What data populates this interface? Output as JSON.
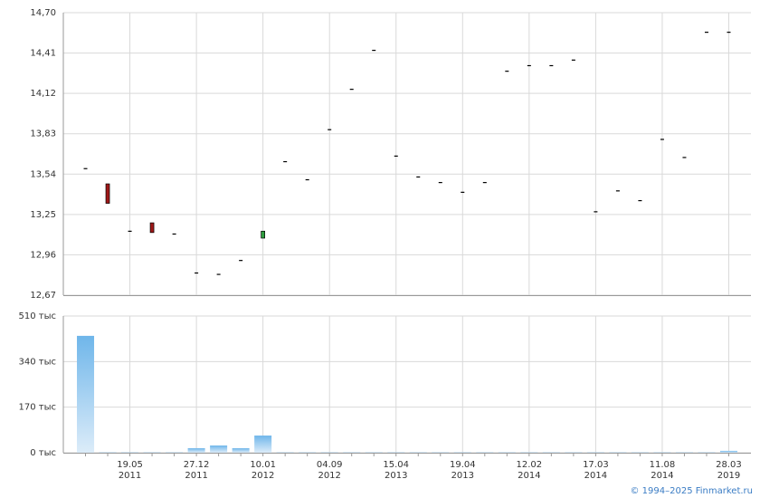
{
  "chart_data": [
    {
      "type": "candlestick",
      "open": [
        13.58,
        13.47,
        13.13,
        13.19,
        13.11,
        12.83,
        12.82,
        12.92,
        13.08,
        13.63,
        13.5,
        13.86,
        14.15,
        14.43,
        13.67,
        13.52,
        13.48,
        13.41,
        13.48,
        14.28,
        14.32,
        14.32,
        14.36,
        13.27,
        13.42,
        13.35,
        13.79,
        13.66,
        14.56,
        14.56
      ],
      "close": [
        13.58,
        13.33,
        13.13,
        13.12,
        13.11,
        12.83,
        12.82,
        12.92,
        13.13,
        13.63,
        13.5,
        13.86,
        14.15,
        14.43,
        13.67,
        13.52,
        13.48,
        13.41,
        13.48,
        14.28,
        14.32,
        14.32,
        14.36,
        13.27,
        13.42,
        13.35,
        13.79,
        13.66,
        14.56,
        14.56
      ],
      "up_color": "#2e9e3e",
      "down_color": "#a01818",
      "flat_color": "#000000",
      "ylim": [
        12.67,
        14.7
      ],
      "yticks": [
        {
          "value": 12.67,
          "label": "12,67"
        },
        {
          "value": 12.96,
          "label": "12,96"
        },
        {
          "value": 13.25,
          "label": "13,25"
        },
        {
          "value": 13.54,
          "label": "13,54"
        },
        {
          "value": 13.83,
          "label": "13,83"
        },
        {
          "value": 14.12,
          "label": "14,12"
        },
        {
          "value": 14.41,
          "label": "14,41"
        },
        {
          "value": 14.7,
          "label": "14,70"
        }
      ],
      "grid": true
    },
    {
      "type": "bar",
      "categories": [
        null,
        null,
        [
          "19.05",
          "2011"
        ],
        null,
        null,
        [
          "27.12",
          "2011"
        ],
        null,
        null,
        [
          "10.01",
          "2012"
        ],
        null,
        null,
        [
          "04.09",
          "2012"
        ],
        null,
        null,
        [
          "15.04",
          "2013"
        ],
        null,
        null,
        [
          "19.04",
          "2013"
        ],
        null,
        null,
        [
          "12.02",
          "2014"
        ],
        null,
        null,
        [
          "17.03",
          "2014"
        ],
        null,
        null,
        [
          "11.08",
          "2014"
        ],
        null,
        null,
        [
          "28.03",
          "2019"
        ]
      ],
      "values": [
        436,
        1,
        1,
        1,
        1,
        17,
        27,
        17,
        64,
        1,
        1,
        1,
        1,
        1,
        1,
        1,
        1,
        1,
        1,
        1,
        1,
        1,
        1,
        1,
        1,
        1,
        1,
        1,
        1,
        7
      ],
      "color": "#6fb6ea",
      "ylim": [
        0,
        510
      ],
      "yticks": [
        {
          "value": 0,
          "label": "0 тыс"
        },
        {
          "value": 170,
          "label": "170 тыс"
        },
        {
          "value": 340,
          "label": "340 тыс"
        },
        {
          "value": 510,
          "label": "510 тыс"
        }
      ],
      "grid": true
    }
  ],
  "copyright": "© 1994–2025 Finmarket.ru"
}
